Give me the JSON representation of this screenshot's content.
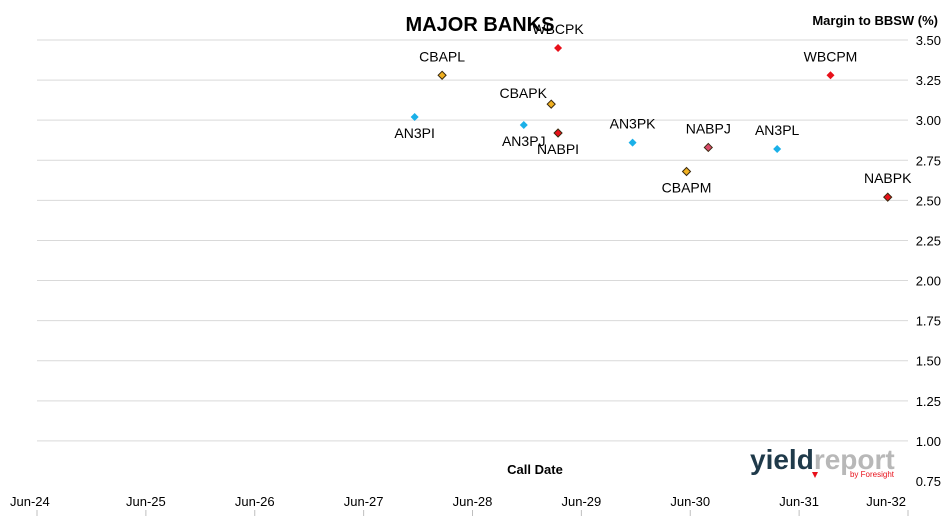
{
  "chart_data": {
    "type": "scatter",
    "title": "MAJOR BANKS",
    "xlabel": "Call Date",
    "ylabel": "Margin to BBSW (%)",
    "ylim": [
      0.75,
      3.5
    ],
    "y_ticks": [
      "0.75",
      "1.00",
      "1.25",
      "1.50",
      "1.75",
      "2.00",
      "2.25",
      "2.50",
      "2.75",
      "3.00",
      "3.25",
      "3.50"
    ],
    "xlim": [
      "2024-06-01",
      "2032-06-01"
    ],
    "x_ticks": [
      "Jun-24",
      "Jun-25",
      "Jun-26",
      "Jun-27",
      "Jun-28",
      "Jun-29",
      "Jun-30",
      "Jun-31",
      "Jun-32"
    ],
    "grid": "horizontal",
    "points": [
      {
        "label": "CBAPL",
        "x": "2028-02-20",
        "y": 3.28,
        "color": "#f0b020",
        "label_pos": "above"
      },
      {
        "label": "WBCPK",
        "x": "2029-03-15",
        "y": 3.45,
        "color": "#e8101a",
        "label_pos": "above"
      },
      {
        "label": "AN3PI",
        "x": "2027-11-20",
        "y": 3.02,
        "color": "#1ab0e8",
        "label_pos": "below"
      },
      {
        "label": "CBAPK",
        "x": "2029-02-20",
        "y": 3.1,
        "color": "#f0b020",
        "label_pos": "above-left"
      },
      {
        "label": "AN3PJ",
        "x": "2028-11-20",
        "y": 2.97,
        "color": "#1ab0e8",
        "label_pos": "below"
      },
      {
        "label": "NABPI",
        "x": "2029-03-15",
        "y": 2.92,
        "color": "#e8101a",
        "label_pos": "below"
      },
      {
        "label": "AN3PK",
        "x": "2029-11-20",
        "y": 2.86,
        "color": "#1ab0e8",
        "label_pos": "above"
      },
      {
        "label": "NABPJ",
        "x": "2030-08-01",
        "y": 2.83,
        "color": "#d94a6a",
        "label_pos": "above"
      },
      {
        "label": "CBAPM",
        "x": "2030-05-20",
        "y": 2.68,
        "color": "#f0b020",
        "label_pos": "below"
      },
      {
        "label": "AN3PL",
        "x": "2031-03-20",
        "y": 2.82,
        "color": "#1ab0e8",
        "label_pos": "above"
      },
      {
        "label": "WBCPM",
        "x": "2031-09-15",
        "y": 3.28,
        "color": "#e8101a",
        "label_pos": "above"
      },
      {
        "label": "NABPK",
        "x": "2032-03-25",
        "y": 2.52,
        "color": "#e8101a",
        "label_pos": "above"
      }
    ]
  },
  "logo": {
    "main_left": "yield",
    "main_right": "report",
    "sub": "by Foresight"
  },
  "colors": {
    "logo_dark": "#1f3a4a",
    "logo_light": "#b8b8b8",
    "logo_accent": "#e8101a"
  }
}
